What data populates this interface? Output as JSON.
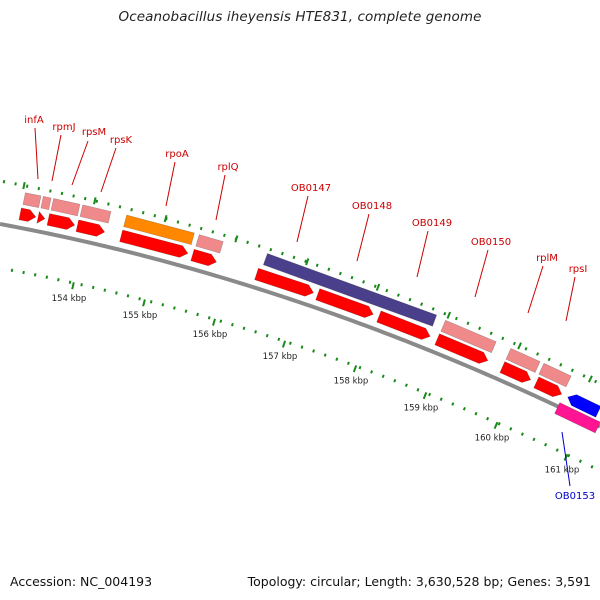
{
  "title": "Oceanobacillus iheyensis HTE831, complete genome",
  "footer": {
    "accession": "Accession: NC_004193",
    "summary": "Topology: circular; Length: 3,630,528 bp; Genes: 3,591"
  },
  "colors": {
    "backbone": "#8a8a8a",
    "tick": "#1a8a1a",
    "gene_red": "#ff0000",
    "gene_light": "#f08a8a",
    "gene_orange": "#ff8800",
    "gene_purple": "#4a3f8a",
    "gene_blue": "#0000ff",
    "gene_magenta": "#ff1493",
    "label_red": "#cc0000",
    "label_blue": "#0000cc",
    "scale_text": "#222222"
  },
  "scale": {
    "labels": [
      "154 kbp",
      "155 kbp",
      "156 kbp",
      "157 kbp",
      "158 kbp",
      "159 kbp",
      "160 kbp",
      "161 kbp"
    ]
  },
  "gene_labels": [
    {
      "text": "infA",
      "color": "red"
    },
    {
      "text": "rpmJ",
      "color": "red"
    },
    {
      "text": "rpsM",
      "color": "red"
    },
    {
      "text": "rpsK",
      "color": "red"
    },
    {
      "text": "rpoA",
      "color": "red"
    },
    {
      "text": "rplQ",
      "color": "red"
    },
    {
      "text": "OB0147",
      "color": "red"
    },
    {
      "text": "OB0148",
      "color": "red"
    },
    {
      "text": "OB0149",
      "color": "red"
    },
    {
      "text": "OB0150",
      "color": "red"
    },
    {
      "text": "rplM",
      "color": "red"
    },
    {
      "text": "rpsI",
      "color": "red"
    },
    {
      "text": "OB0153",
      "color": "blue"
    }
  ]
}
